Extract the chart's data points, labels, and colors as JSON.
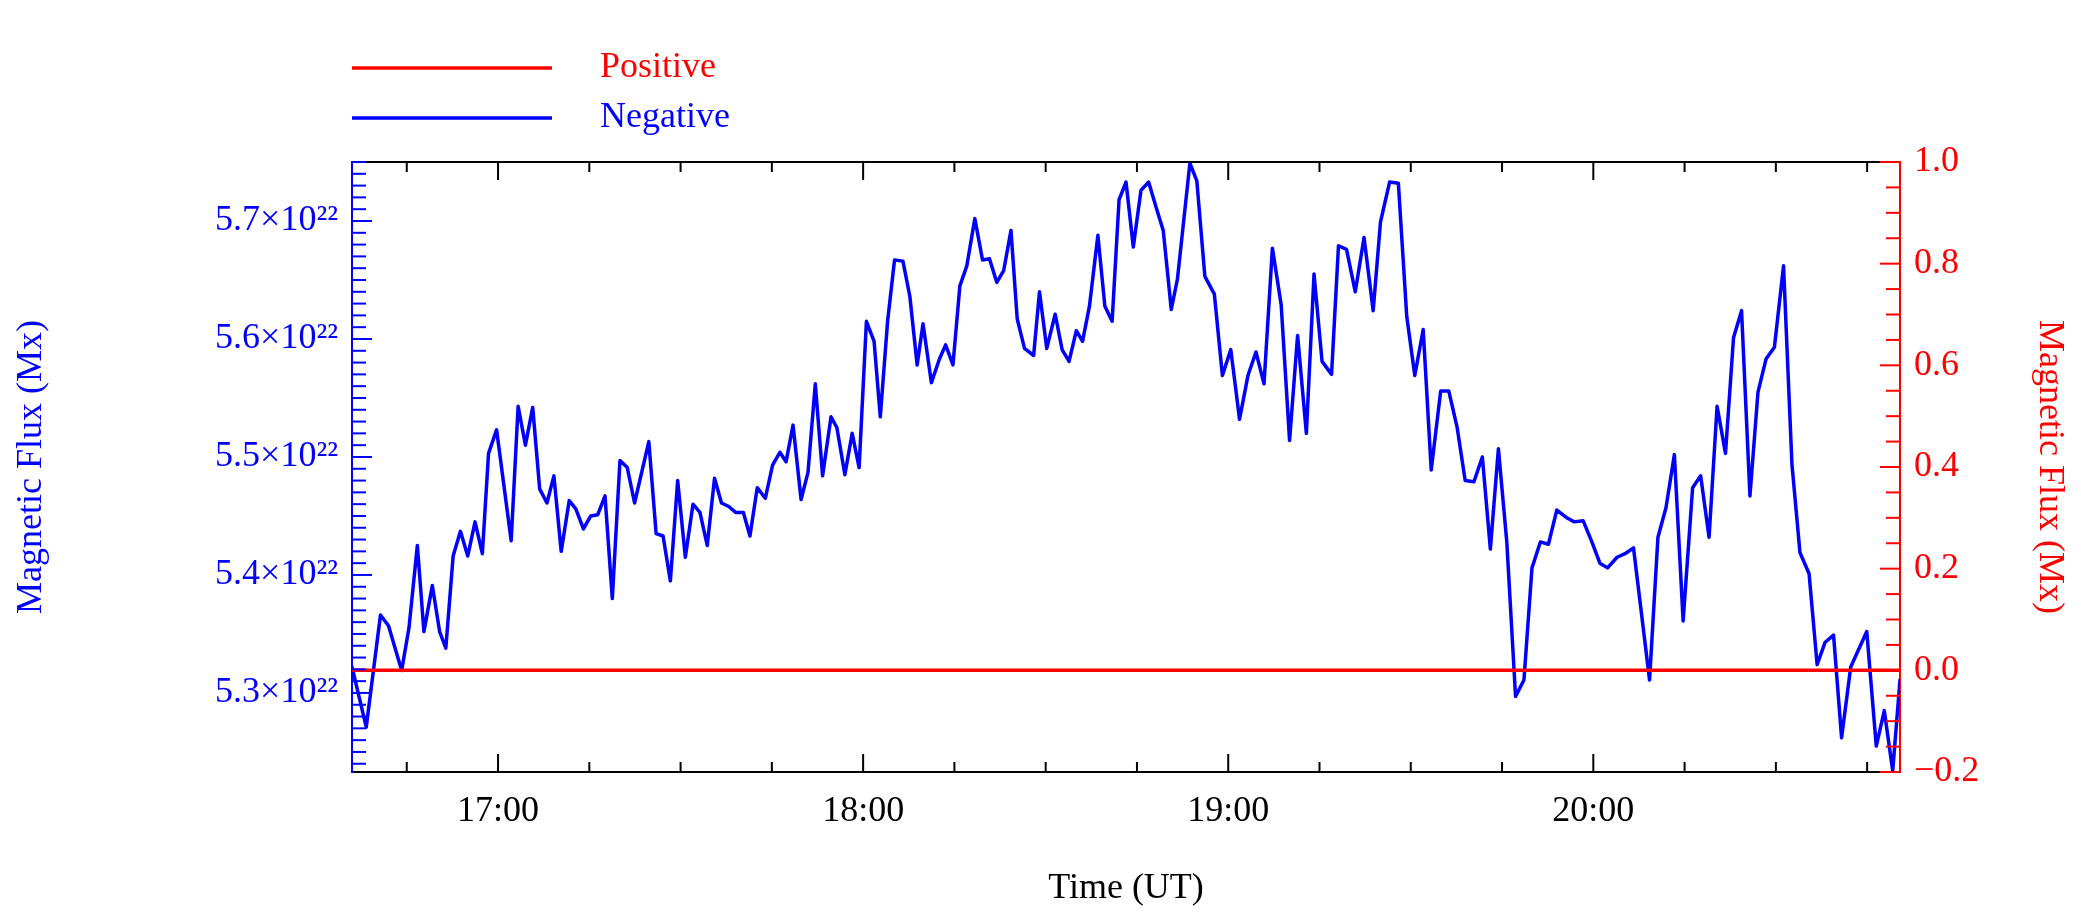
{
  "chart_data": {
    "type": "line",
    "xlabel": "Time (UT)",
    "ylabel": "Magnetic Flux (Mx)",
    "y2label": "Magnetic Flux (Mx)",
    "legend": "top left",
    "marker": "none",
    "line_style": "solid",
    "xlim": [
      16.6,
      20.84
    ],
    "xticks": [
      {
        "value": 16.75,
        "label": null
      },
      {
        "value": 17,
        "label": "17:00"
      },
      {
        "value": 17.25,
        "label": null
      },
      {
        "value": 17.5,
        "label": null
      },
      {
        "value": 17.75,
        "label": null
      },
      {
        "value": 18,
        "label": "18:00"
      },
      {
        "value": 18.25,
        "label": null
      },
      {
        "value": 18.5,
        "label": null
      },
      {
        "value": 18.75,
        "label": null
      },
      {
        "value": 19,
        "label": "19:00"
      },
      {
        "value": 19.25,
        "label": null
      },
      {
        "value": 19.5,
        "label": null
      },
      {
        "value": 19.75,
        "label": null
      },
      {
        "value": 20,
        "label": "20:00"
      },
      {
        "value": 20.25,
        "label": null
      },
      {
        "value": 20.5,
        "label": null
      },
      {
        "value": 20.75,
        "label": null
      }
    ],
    "ylim": [
      5.233e+22,
      5.75e+22
    ],
    "yticks": [
      {
        "value": 5.24e+22,
        "label": null
      },
      {
        "value": 5.25e+22,
        "label": null
      },
      {
        "value": 5.26e+22,
        "label": null
      },
      {
        "value": 5.27e+22,
        "label": null
      },
      {
        "value": 5.28e+22,
        "label": null
      },
      {
        "value": 5.29e+22,
        "label": null
      },
      {
        "value": 5.3e+22,
        "label": "5.3×10²²"
      },
      {
        "value": 5.31e+22,
        "label": null
      },
      {
        "value": 5.32e+22,
        "label": null
      },
      {
        "value": 5.33e+22,
        "label": null
      },
      {
        "value": 5.34e+22,
        "label": null
      },
      {
        "value": 5.35e+22,
        "label": null
      },
      {
        "value": 5.36e+22,
        "label": null
      },
      {
        "value": 5.37e+22,
        "label": null
      },
      {
        "value": 5.38e+22,
        "label": null
      },
      {
        "value": 5.39e+22,
        "label": null
      },
      {
        "value": 5.4e+22,
        "label": "5.4×10²²"
      },
      {
        "value": 5.41e+22,
        "label": null
      },
      {
        "value": 5.42e+22,
        "label": null
      },
      {
        "value": 5.43e+22,
        "label": null
      },
      {
        "value": 5.44e+22,
        "label": null
      },
      {
        "value": 5.45e+22,
        "label": null
      },
      {
        "value": 5.46e+22,
        "label": null
      },
      {
        "value": 5.47e+22,
        "label": null
      },
      {
        "value": 5.48e+22,
        "label": null
      },
      {
        "value": 5.49e+22,
        "label": null
      },
      {
        "value": 5.5e+22,
        "label": "5.5×10²²"
      },
      {
        "value": 5.51e+22,
        "label": null
      },
      {
        "value": 5.52e+22,
        "label": null
      },
      {
        "value": 5.53e+22,
        "label": null
      },
      {
        "value": 5.54e+22,
        "label": null
      },
      {
        "value": 5.55e+22,
        "label": null
      },
      {
        "value": 5.56e+22,
        "label": null
      },
      {
        "value": 5.57e+22,
        "label": null
      },
      {
        "value": 5.58e+22,
        "label": null
      },
      {
        "value": 5.59e+22,
        "label": null
      },
      {
        "value": 5.6e+22,
        "label": "5.6×10²²"
      },
      {
        "value": 5.61e+22,
        "label": null
      },
      {
        "value": 5.62e+22,
        "label": null
      },
      {
        "value": 5.63e+22,
        "label": null
      },
      {
        "value": 5.64e+22,
        "label": null
      },
      {
        "value": 5.65e+22,
        "label": null
      },
      {
        "value": 5.66e+22,
        "label": null
      },
      {
        "value": 5.67e+22,
        "label": null
      },
      {
        "value": 5.68e+22,
        "label": null
      },
      {
        "value": 5.69e+22,
        "label": null
      },
      {
        "value": 5.7e+22,
        "label": "5.7×10²²"
      },
      {
        "value": 5.71e+22,
        "label": null
      },
      {
        "value": 5.72e+22,
        "label": null
      },
      {
        "value": 5.73e+22,
        "label": null
      },
      {
        "value": 5.74e+22,
        "label": null
      },
      {
        "value": 5.75e+22,
        "label": null
      }
    ],
    "y2lim": [
      -0.2,
      1.0
    ],
    "y2ticks": [
      {
        "value": -0.2,
        "label": "−0.2"
      },
      {
        "value": -0.15,
        "label": null
      },
      {
        "value": -0.1,
        "label": null
      },
      {
        "value": -0.05,
        "label": null
      },
      {
        "value": 0,
        "label": "0.0"
      },
      {
        "value": 0.05,
        "label": null
      },
      {
        "value": 0.1,
        "label": null
      },
      {
        "value": 0.15,
        "label": null
      },
      {
        "value": 0.2,
        "label": "0.2"
      },
      {
        "value": 0.25,
        "label": null
      },
      {
        "value": 0.3,
        "label": null
      },
      {
        "value": 0.35,
        "label": null
      },
      {
        "value": 0.4,
        "label": "0.4"
      },
      {
        "value": 0.45,
        "label": null
      },
      {
        "value": 0.5,
        "label": null
      },
      {
        "value": 0.55,
        "label": null
      },
      {
        "value": 0.6,
        "label": "0.6"
      },
      {
        "value": 0.65,
        "label": null
      },
      {
        "value": 0.7,
        "label": null
      },
      {
        "value": 0.75,
        "label": null
      },
      {
        "value": 0.8,
        "label": "0.8"
      },
      {
        "value": 0.85,
        "label": null
      },
      {
        "value": 0.9,
        "label": null
      },
      {
        "value": 0.95,
        "label": null
      },
      {
        "value": 1.0,
        "label": "1.0"
      }
    ],
    "series": [
      {
        "name": "Positive",
        "color": "#ff0000",
        "axis": "y2",
        "x": [
          16.6,
          20.84
        ],
        "values": [
          0,
          0
        ]
      },
      {
        "name": "Negative",
        "color": "#0000ff",
        "axis": "y",
        "x": [
          16.6,
          16.639,
          16.678,
          16.7,
          16.736,
          16.756,
          16.779,
          16.797,
          16.82,
          16.84,
          16.857,
          16.877,
          16.897,
          16.917,
          16.937,
          16.957,
          16.974,
          16.996,
          17.036,
          17.055,
          17.075,
          17.095,
          17.114,
          17.134,
          17.153,
          17.173,
          17.195,
          17.213,
          17.234,
          17.254,
          17.273,
          17.293,
          17.313,
          17.334,
          17.354,
          17.374,
          17.413,
          17.433,
          17.452,
          17.472,
          17.492,
          17.513,
          17.534,
          17.553,
          17.573,
          17.593,
          17.612,
          17.632,
          17.651,
          17.672,
          17.69,
          17.71,
          17.732,
          17.752,
          17.772,
          17.789,
          17.808,
          17.83,
          17.849,
          17.869,
          17.889,
          17.912,
          17.928,
          17.95,
          17.97,
          17.989,
          18.009,
          18.03,
          18.047,
          18.067,
          18.086,
          18.109,
          18.128,
          18.148,
          18.164,
          18.187,
          18.209,
          18.226,
          18.246,
          18.265,
          18.284,
          18.306,
          18.327,
          18.346,
          18.366,
          18.385,
          18.405,
          18.422,
          18.442,
          18.467,
          18.483,
          18.503,
          18.526,
          18.545,
          18.564,
          18.584,
          18.601,
          18.62,
          18.643,
          18.662,
          18.682,
          18.701,
          18.72,
          18.74,
          18.761,
          18.782,
          18.802,
          18.822,
          18.844,
          18.861,
          18.895,
          18.914,
          18.936,
          18.962,
          18.984,
          19.007,
          19.031,
          19.054,
          19.076,
          19.098,
          19.121,
          19.145,
          19.168,
          19.19,
          19.214,
          19.235,
          19.257,
          19.283,
          19.302,
          19.324,
          19.348,
          19.372,
          19.397,
          19.417,
          19.442,
          19.466,
          19.489,
          19.511,
          19.534,
          19.556,
          19.582,
          19.604,
          19.627,
          19.649,
          19.673,
          19.696,
          19.718,
          19.74,
          19.763,
          19.787,
          19.81,
          19.832,
          19.855,
          19.877,
          19.9,
          19.925,
          19.947,
          19.972,
          19.996,
          20.018,
          20.039,
          20.065,
          20.087,
          20.11,
          20.154,
          20.177,
          20.199,
          20.222,
          20.246,
          20.272,
          20.294,
          20.317,
          20.339,
          20.362,
          20.384,
          20.406,
          20.429,
          20.451,
          20.473,
          20.496,
          20.521,
          20.544,
          20.566,
          20.591,
          20.613,
          20.635,
          20.658,
          20.68,
          20.705,
          20.749,
          20.775,
          20.797,
          20.82,
          20.84
        ],
        "values": [
          5.322e+22,
          5.271e+22,
          5.366e+22,
          5.357e+22,
          5.319e+22,
          5.355e+22,
          5.425e+22,
          5.352e+22,
          5.391e+22,
          5.352e+22,
          5.338e+22,
          5.416e+22,
          5.437e+22,
          5.416e+22,
          5.445e+22,
          5.418e+22,
          5.503e+22,
          5.523e+22,
          5.429e+22,
          5.543e+22,
          5.51e+22,
          5.542e+22,
          5.473e+22,
          5.461e+22,
          5.484e+22,
          5.42e+22,
          5.463e+22,
          5.456e+22,
          5.439e+22,
          5.45e+22,
          5.451e+22,
          5.467e+22,
          5.38e+22,
          5.497e+22,
          5.491e+22,
          5.461e+22,
          5.513e+22,
          5.435e+22,
          5.433e+22,
          5.395e+22,
          5.48e+22,
          5.415e+22,
          5.46e+22,
          5.453e+22,
          5.425e+22,
          5.482e+22,
          5.461e+22,
          5.458e+22,
          5.453e+22,
          5.453e+22,
          5.433e+22,
          5.474e+22,
          5.465e+22,
          5.493e+22,
          5.504e+22,
          5.496e+22,
          5.527e+22,
          5.464e+22,
          5.487e+22,
          5.562e+22,
          5.484e+22,
          5.534e+22,
          5.525e+22,
          5.485e+22,
          5.52e+22,
          5.491e+22,
          5.615e+22,
          5.598e+22,
          5.534e+22,
          5.615e+22,
          5.667e+22,
          5.666e+22,
          5.636e+22,
          5.578e+22,
          5.613e+22,
          5.563e+22,
          5.583e+22,
          5.595e+22,
          5.578e+22,
          5.645e+22,
          5.662e+22,
          5.702e+22,
          5.667e+22,
          5.668e+22,
          5.648e+22,
          5.658e+22,
          5.692e+22,
          5.617e+22,
          5.592e+22,
          5.586e+22,
          5.64e+22,
          5.592e+22,
          5.621e+22,
          5.591e+22,
          5.581e+22,
          5.607e+22,
          5.598e+22,
          5.628e+22,
          5.688e+22,
          5.628e+22,
          5.615e+22,
          5.718e+22,
          5.733e+22,
          5.678e+22,
          5.726e+22,
          5.733e+22,
          5.712e+22,
          5.692e+22,
          5.625e+22,
          5.651e+22,
          5.749e+22,
          5.734e+22,
          5.653e+22,
          5.638e+22,
          5.569e+22,
          5.591e+22,
          5.532e+22,
          5.569e+22,
          5.589e+22,
          5.562e+22,
          5.677e+22,
          5.629e+22,
          5.514e+22,
          5.603e+22,
          5.52e+22,
          5.655e+22,
          5.581e+22,
          5.57e+22,
          5.679e+22,
          5.676e+22,
          5.64e+22,
          5.686e+22,
          5.624e+22,
          5.699e+22,
          5.733e+22,
          5.732e+22,
          5.619e+22,
          5.569e+22,
          5.608e+22,
          5.489e+22,
          5.556e+22,
          5.556e+22,
          5.525e+22,
          5.48e+22,
          5.479e+22,
          5.5e+22,
          5.422e+22,
          5.507e+22,
          5.428e+22,
          5.297e+22,
          5.311e+22,
          5.406e+22,
          5.428e+22,
          5.426e+22,
          5.455e+22,
          5.449e+22,
          5.445e+22,
          5.446e+22,
          5.428e+22,
          5.41e+22,
          5.406e+22,
          5.415e+22,
          5.418e+22,
          5.423e+22,
          5.311e+22,
          5.432e+22,
          5.457e+22,
          5.502e+22,
          5.361e+22,
          5.474e+22,
          5.484e+22,
          5.432e+22,
          5.543e+22,
          5.503e+22,
          5.601e+22,
          5.624e+22,
          5.467e+22,
          5.555e+22,
          5.583e+22,
          5.593e+22,
          5.662e+22,
          5.494e+22,
          5.419e+22,
          5.401e+22,
          5.324e+22,
          5.343e+22,
          5.349e+22,
          5.262e+22,
          5.322e+22,
          5.352e+22,
          5.255e+22,
          5.285e+22,
          5.234e+22,
          5.311e+22
        ]
      }
    ]
  }
}
